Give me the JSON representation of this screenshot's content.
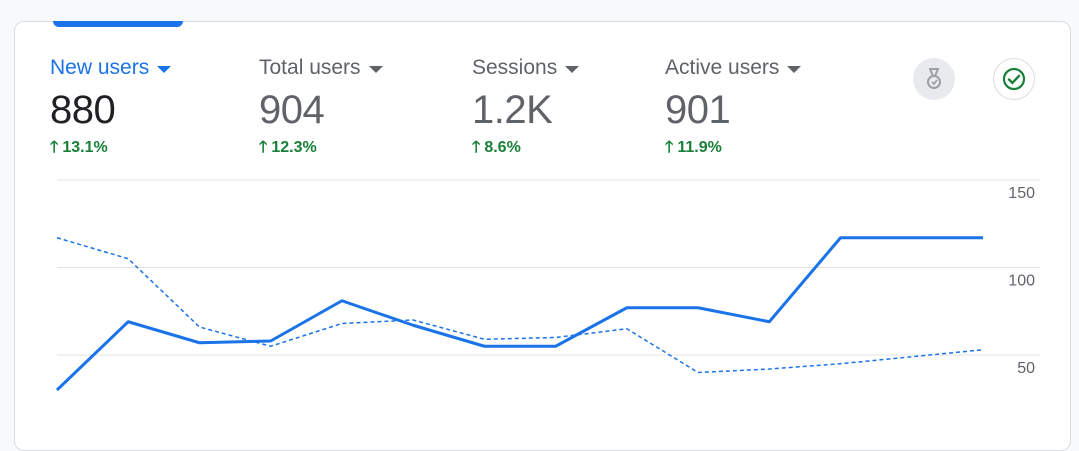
{
  "metrics": [
    {
      "label": "New users",
      "value": "880",
      "change": "13.1%",
      "active": true
    },
    {
      "label": "Total users",
      "value": "904",
      "change": "12.3%",
      "active": false
    },
    {
      "label": "Sessions",
      "value": "1.2K",
      "change": "8.6%",
      "active": false
    },
    {
      "label": "Active users",
      "value": "901",
      "change": "11.9%",
      "active": false
    }
  ],
  "icons": {
    "insights": "insights-icon",
    "check": "check-circle-icon"
  },
  "colors": {
    "accent": "#1a73e8",
    "positive": "#188038",
    "grid": "#e0e0e0"
  },
  "chart_data": {
    "type": "line",
    "x": [
      1,
      2,
      3,
      4,
      5,
      6,
      7,
      8,
      9,
      10,
      11,
      12,
      13,
      14
    ],
    "series": [
      {
        "values": [
          30,
          69,
          57,
          58,
          81,
          67,
          55,
          55,
          77,
          77,
          69,
          117,
          117,
          117
        ]
      },
      {
        "values": [
          117,
          105,
          66,
          55,
          68,
          70,
          59,
          60,
          65,
          40,
          42,
          45,
          49,
          53
        ]
      }
    ],
    "yticks": [
      "150",
      "100",
      "50"
    ],
    "ylim": [
      25,
      150
    ],
    "grid": true
  }
}
